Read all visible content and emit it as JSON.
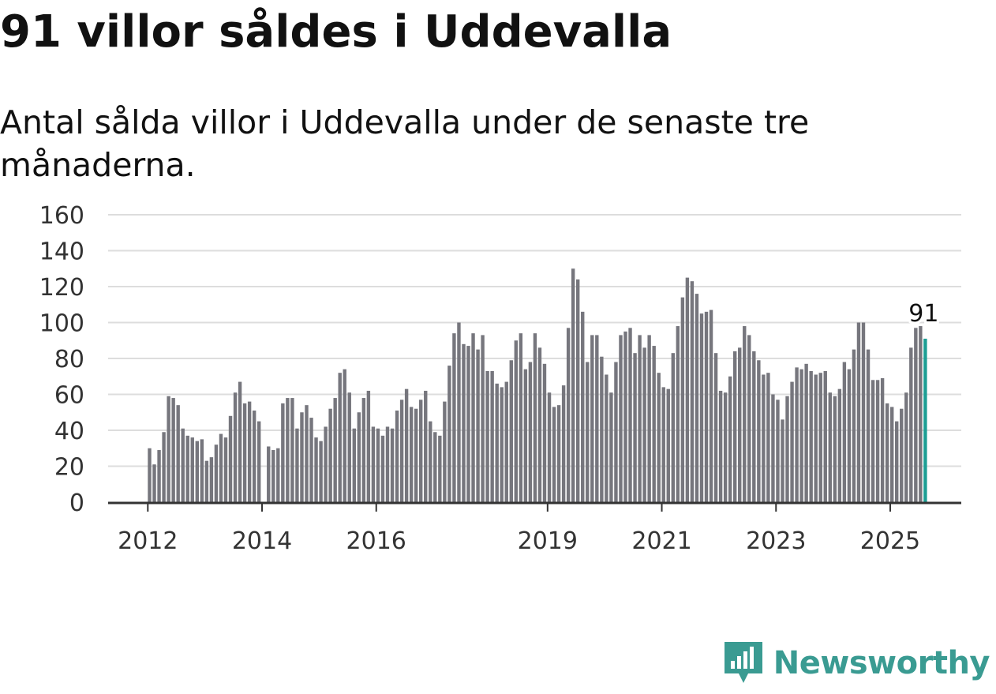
{
  "header": {
    "title": "91 villor såldes i Uddevalla",
    "subtitle": "Antal sålda villor i Uddevalla under de senaste tre månaderna."
  },
  "brand": {
    "name": "Newsworthy",
    "icon": "newsworthy-logo-icon",
    "color": "#3a9b92"
  },
  "colors": {
    "bar": "#76767d",
    "highlight": "#1c9e94",
    "grid": "#dddddd",
    "axis": "#333333"
  },
  "chart_data": {
    "type": "bar",
    "title": "91 villor såldes i Uddevalla",
    "subtitle": "Antal sålda villor i Uddevalla under de senaste tre månaderna.",
    "xlabel": "",
    "ylabel": "",
    "ylim": [
      0,
      160
    ],
    "yticks": [
      "0",
      "20",
      "40",
      "60",
      "80",
      "100",
      "120",
      "140",
      "160"
    ],
    "xticks": [
      {
        "label": "2012",
        "date": "2012-01"
      },
      {
        "label": "2014",
        "date": "2014-01"
      },
      {
        "label": "2016",
        "date": "2016-01"
      },
      {
        "label": "2019",
        "date": "2019-01"
      },
      {
        "label": "2021",
        "date": "2021-01"
      },
      {
        "label": "2023",
        "date": "2023-01"
      },
      {
        "label": "2025",
        "date": "2025-01"
      }
    ],
    "grid": true,
    "start_month": "2012-01",
    "values": [
      30,
      21,
      29,
      39,
      59,
      58,
      54,
      41,
      37,
      36,
      34,
      35,
      23,
      25,
      32,
      38,
      36,
      48,
      61,
      67,
      55,
      56,
      51,
      45,
      null,
      31,
      29,
      30,
      55,
      58,
      58,
      41,
      50,
      54,
      47,
      36,
      34,
      42,
      52,
      58,
      72,
      74,
      61,
      41,
      50,
      58,
      62,
      42,
      41,
      37,
      42,
      41,
      51,
      57,
      63,
      53,
      52,
      57,
      62,
      45,
      39,
      37,
      56,
      76,
      94,
      100,
      88,
      87,
      94,
      85,
      93,
      73,
      73,
      66,
      64,
      67,
      79,
      90,
      94,
      74,
      78,
      94,
      86,
      77,
      61,
      53,
      54,
      65,
      97,
      130,
      124,
      106,
      78,
      93,
      93,
      81,
      71,
      61,
      78,
      93,
      95,
      97,
      83,
      93,
      86,
      93,
      87,
      72,
      64,
      63,
      83,
      98,
      114,
      125,
      123,
      116,
      105,
      106,
      107,
      83,
      62,
      61,
      70,
      84,
      86,
      98,
      93,
      84,
      79,
      71,
      72,
      60,
      57,
      46,
      59,
      67,
      75,
      74,
      77,
      73,
      71,
      72,
      73,
      61,
      59,
      63,
      78,
      74,
      85,
      100,
      100,
      85,
      68,
      68,
      69,
      55,
      53,
      45,
      52,
      61,
      86,
      97,
      98,
      91
    ],
    "highlight": {
      "index": 163,
      "value": 91,
      "label": "91"
    }
  }
}
